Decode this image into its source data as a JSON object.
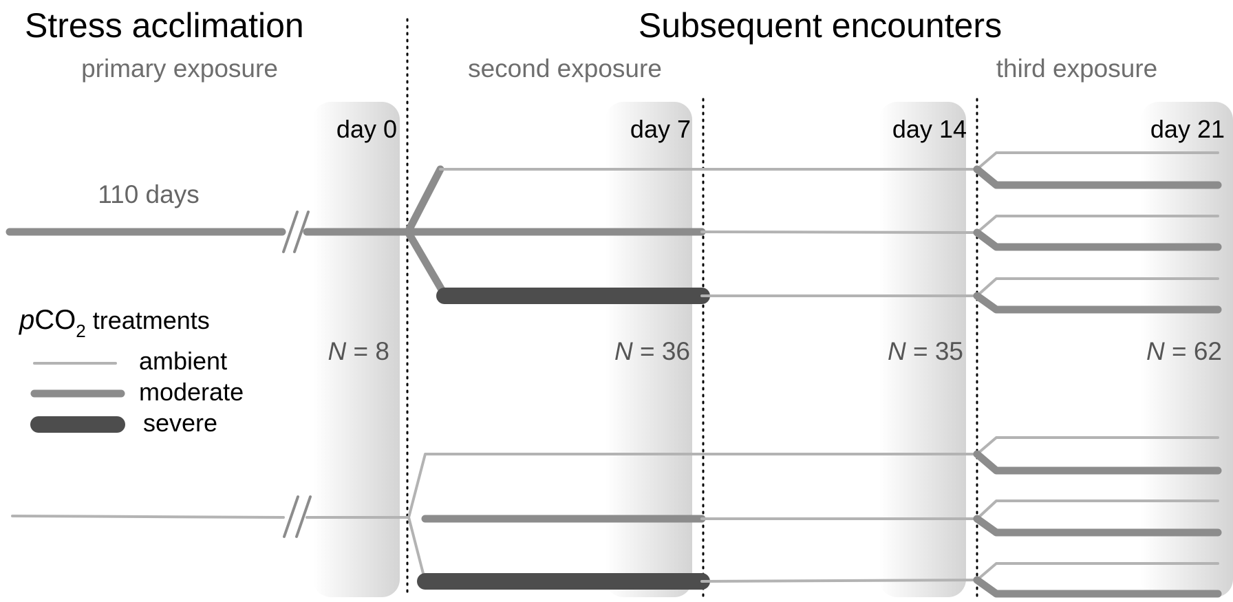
{
  "headings": {
    "left": "Stress acclimation",
    "right": "Subsequent encounters"
  },
  "subheadings": {
    "primary": "primary exposure",
    "second": "second exposure",
    "third": "third exposure"
  },
  "duration_label": "110 days",
  "days": [
    {
      "label": "day 0",
      "n_value": "= 8"
    },
    {
      "label": "day 7",
      "n_value": "= 36"
    },
    {
      "label": "day 14",
      "n_value": "= 35"
    },
    {
      "label": "day 21",
      "n_value": "= 62"
    }
  ],
  "n_symbol": "N",
  "legend": {
    "title_italic": "p",
    "title_main": "CO",
    "title_subscript": "2",
    "title_suffix": "treatments",
    "items": [
      {
        "label": "ambient",
        "color": "#b3b3b3"
      },
      {
        "label": "moderate",
        "color": "#8c8c8c"
      },
      {
        "label": "severe",
        "color": "#4d4d4d"
      }
    ]
  },
  "colors": {
    "ambient": "#b3b3b3",
    "moderate": "#8c8c8c",
    "severe": "#4d4d4d",
    "band_gray": "#d6d6d6"
  }
}
